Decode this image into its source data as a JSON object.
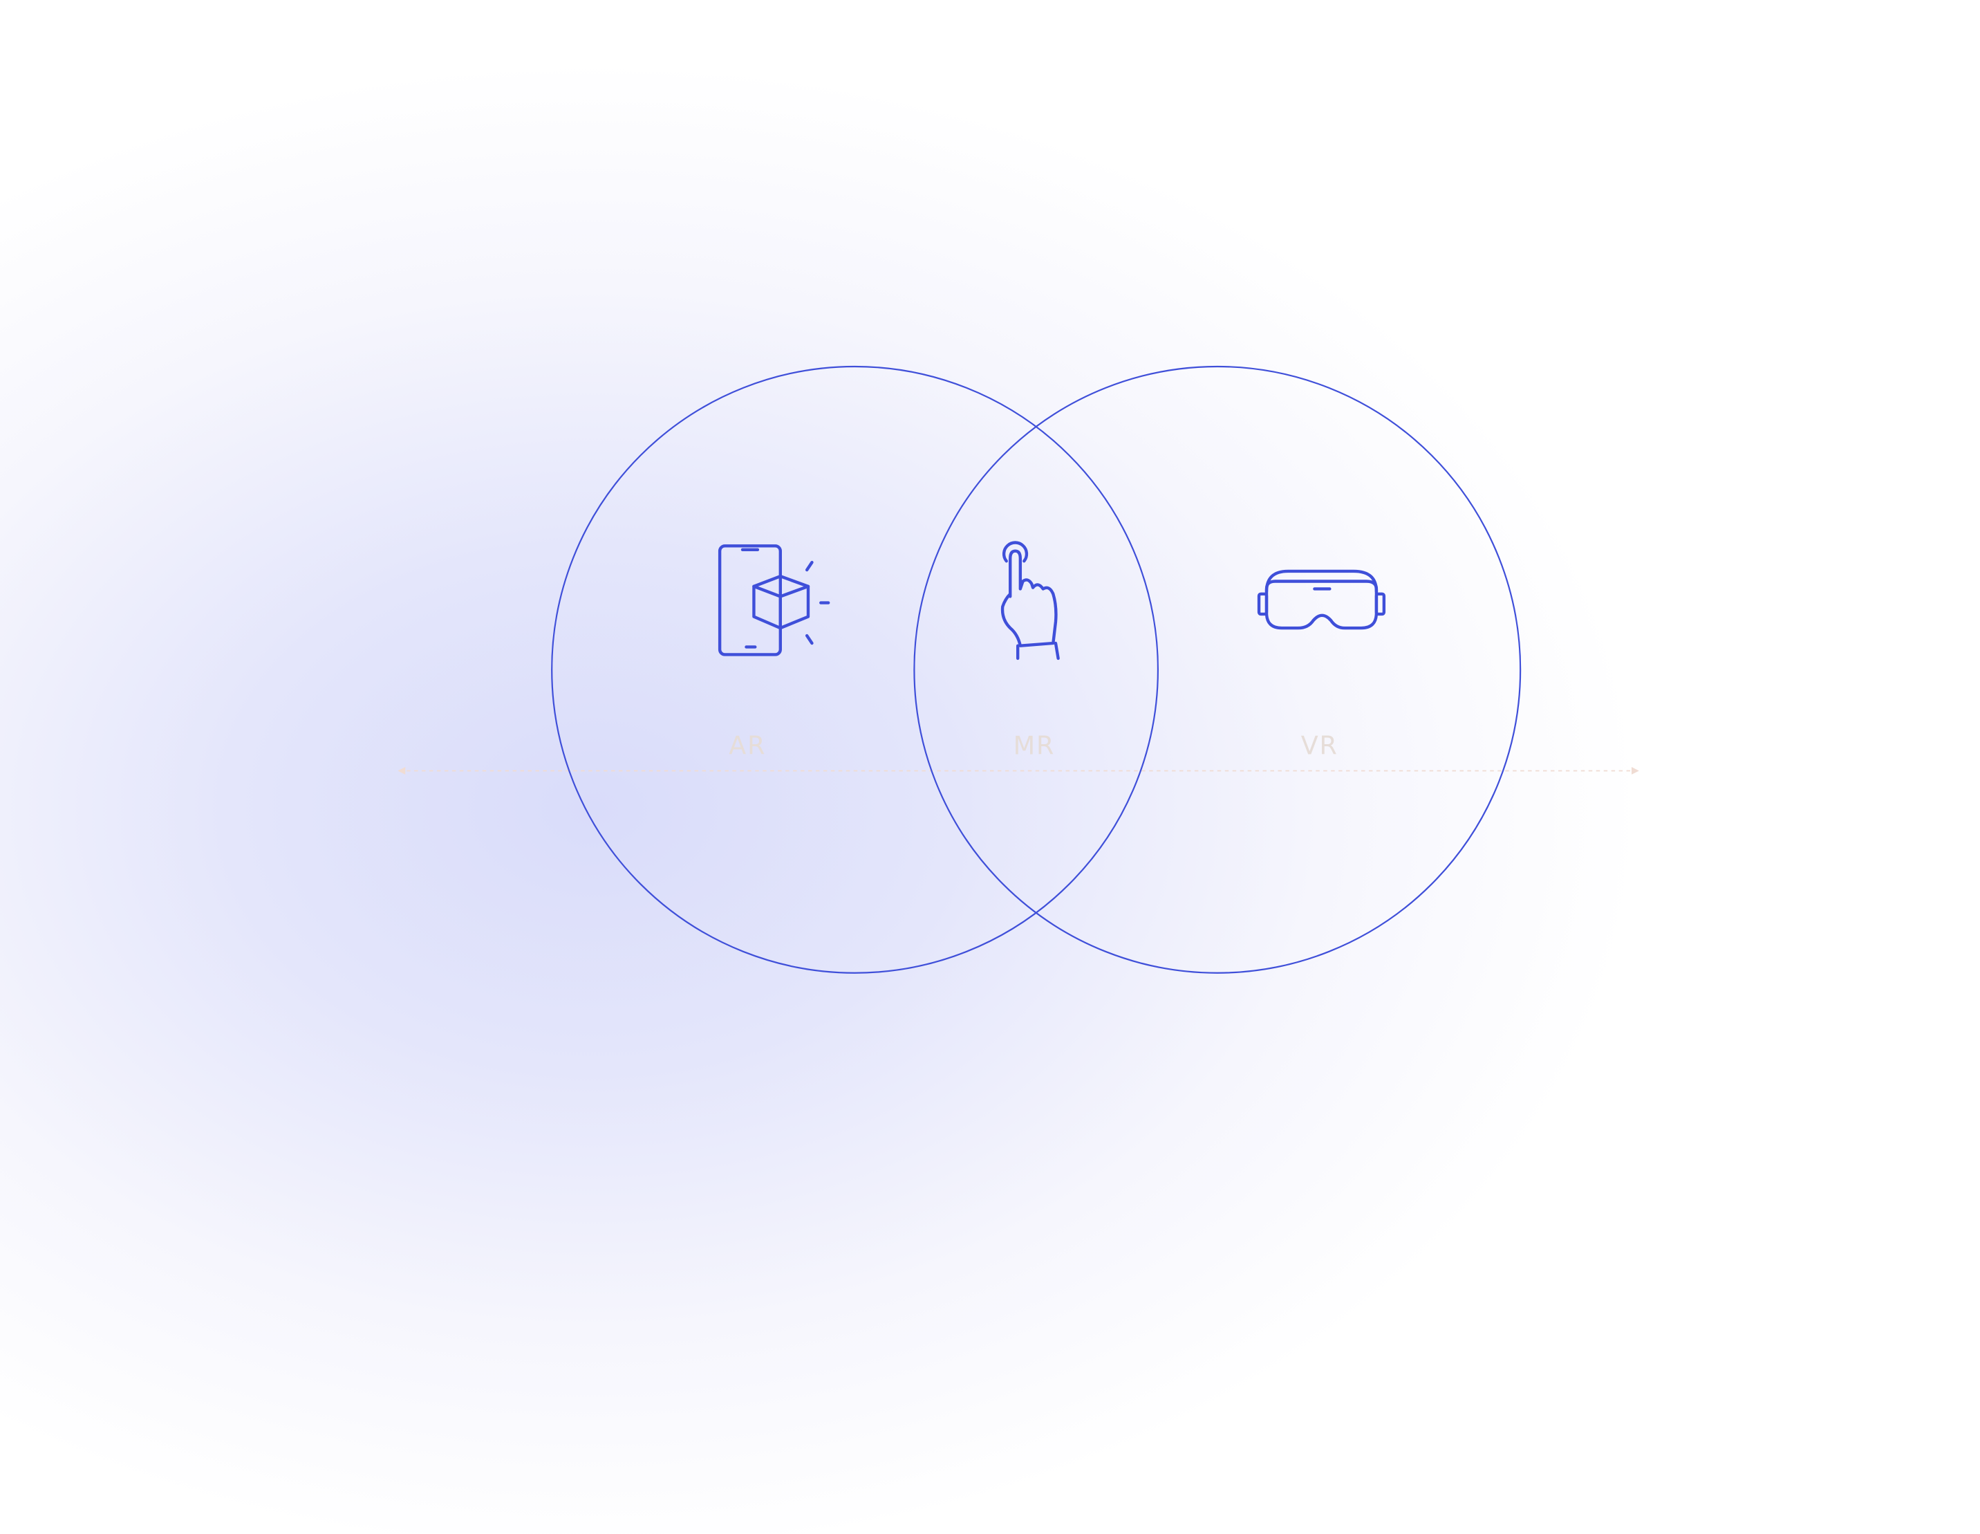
{
  "labels": [
    "AR",
    "MR",
    "VR"
  ]
}
